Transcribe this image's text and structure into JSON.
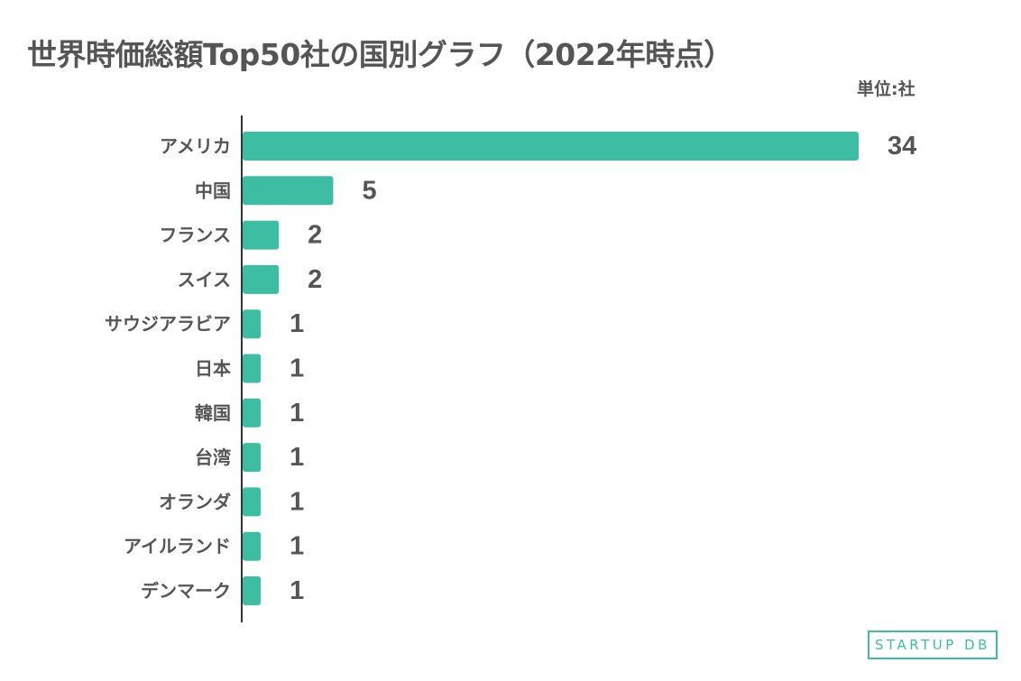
{
  "title": "世界時価総額Top50社の国別グラフ（2022年時点）",
  "unit_label": "単位:社",
  "brand": "STARTUP DB",
  "colors": {
    "bar": "#3dbda2",
    "text": "#555555",
    "axis": "#333333"
  },
  "chart_data": {
    "type": "bar",
    "orientation": "horizontal",
    "categories": [
      "アメリカ",
      "中国",
      "フランス",
      "スイス",
      "サウジアラビア",
      "日本",
      "韓国",
      "台湾",
      "オランダ",
      "アイルランド",
      "デンマーク"
    ],
    "values": [
      34,
      5,
      2,
      2,
      1,
      1,
      1,
      1,
      1,
      1,
      1
    ],
    "title": "世界時価総額Top50社の国別グラフ（2022年時点）",
    "xlabel": "",
    "ylabel": "",
    "xlim": [
      0,
      34
    ],
    "grid": false,
    "data_labels": true
  }
}
